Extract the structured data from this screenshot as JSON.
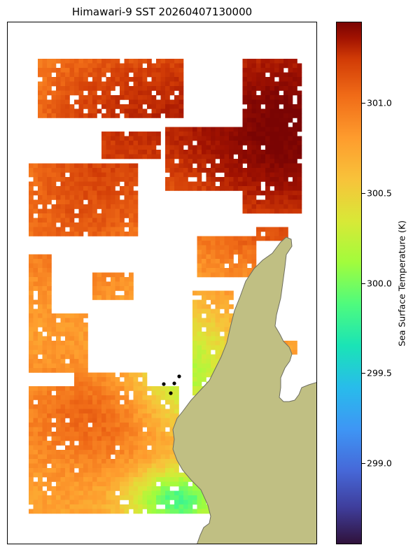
{
  "title": "Himawari-9 SST 20260407130000",
  "colorbar": {
    "label": "Sea Surface Temperature (K)",
    "min": 298.55,
    "max": 301.45,
    "colormap": "turbo",
    "ticks": [
      {
        "value": 299.0,
        "label": "299.0"
      },
      {
        "value": 299.5,
        "label": "299.5"
      },
      {
        "value": 300.0,
        "label": "300.0"
      },
      {
        "value": 300.5,
        "label": "300.5"
      },
      {
        "value": 301.0,
        "label": "301.0"
      }
    ]
  },
  "colors": {
    "land": "#c0bf83",
    "coastline": "#6e6e60",
    "station_marker": "#000000"
  }
}
